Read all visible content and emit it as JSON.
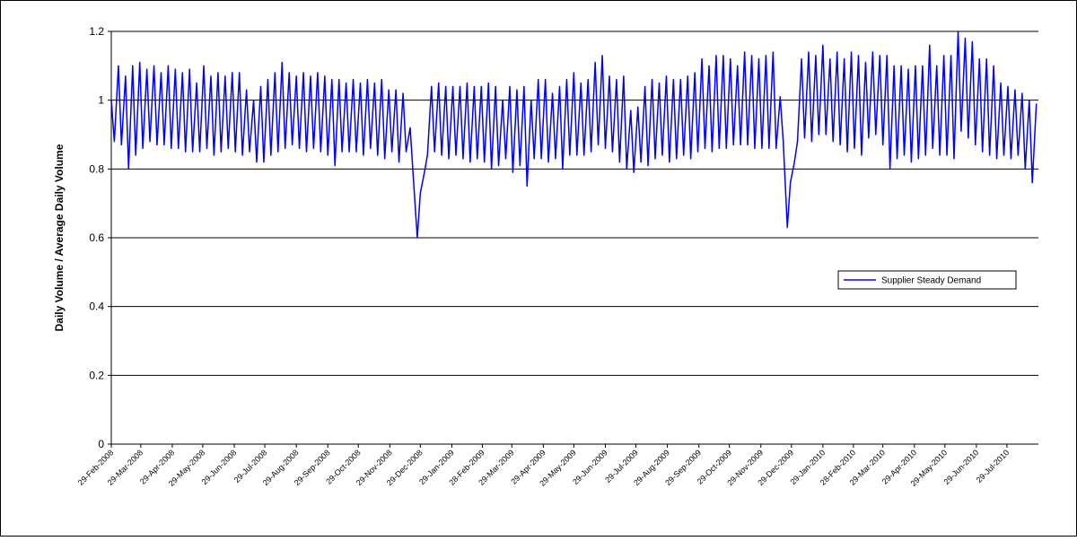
{
  "chart_data": {
    "type": "line",
    "y_label": "Daily Volume / Average Daily Volume",
    "ylim": [
      0,
      1.2
    ],
    "yticks": [
      0,
      0.2,
      0.4,
      0.6,
      0.8,
      1,
      1.2
    ],
    "grid": true,
    "legend": "right",
    "xlim": [
      "29-Feb-2008",
      "29-Aug-2010"
    ],
    "xticks": [
      "29-Feb-2008",
      "29-Mar-2008",
      "29-Apr-2008",
      "29-May-2008",
      "29-Jun-2008",
      "29-Jul-2008",
      "29-Aug-2008",
      "29-Sep-2008",
      "29-Oct-2008",
      "29-Nov-2008",
      "29-Dec-2008",
      "29-Jan-2009",
      "28-Feb-2009",
      "29-Mar-2009",
      "29-Apr-2009",
      "29-May-2009",
      "29-Jun-2009",
      "29-Jul-2009",
      "29-Aug-2009",
      "29-Sep-2009",
      "29-Oct-2009",
      "29-Nov-2009",
      "29-Dec-2009",
      "29-Jan-2010",
      "28-Feb-2010",
      "29-Mar-2010",
      "29-Apr-2010",
      "29-May-2010",
      "29-Jun-2010",
      "29-Jul-2010"
    ],
    "x": [
      "29-Feb-2008",
      "3-Mar-2008",
      "7-Mar-2008",
      "10-Mar-2008",
      "14-Mar-2008",
      "17-Mar-2008",
      "21-Mar-2008",
      "24-Mar-2008",
      "28-Mar-2008",
      "31-Mar-2008",
      "4-Apr-2008",
      "7-Apr-2008",
      "11-Apr-2008",
      "14-Apr-2008",
      "18-Apr-2008",
      "21-Apr-2008",
      "25-Apr-2008",
      "28-Apr-2008",
      "2-May-2008",
      "5-May-2008",
      "9-May-2008",
      "12-May-2008",
      "16-May-2008",
      "19-May-2008",
      "23-May-2008",
      "26-May-2008",
      "30-May-2008",
      "2-Jun-2008",
      "6-Jun-2008",
      "9-Jun-2008",
      "13-Jun-2008",
      "16-Jun-2008",
      "20-Jun-2008",
      "23-Jun-2008",
      "27-Jun-2008",
      "30-Jun-2008",
      "4-Jul-2008",
      "7-Jul-2008",
      "11-Jul-2008",
      "14-Jul-2008",
      "18-Jul-2008",
      "21-Jul-2008",
      "25-Jul-2008",
      "28-Jul-2008",
      "1-Aug-2008",
      "4-Aug-2008",
      "8-Aug-2008",
      "11-Aug-2008",
      "15-Aug-2008",
      "18-Aug-2008",
      "22-Aug-2008",
      "25-Aug-2008",
      "29-Aug-2008",
      "1-Sep-2008",
      "5-Sep-2008",
      "8-Sep-2008",
      "12-Sep-2008",
      "15-Sep-2008",
      "19-Sep-2008",
      "22-Sep-2008",
      "26-Sep-2008",
      "29-Sep-2008",
      "3-Oct-2008",
      "6-Oct-2008",
      "10-Oct-2008",
      "13-Oct-2008",
      "17-Oct-2008",
      "20-Oct-2008",
      "24-Oct-2008",
      "27-Oct-2008",
      "31-Oct-2008",
      "3-Nov-2008",
      "7-Nov-2008",
      "10-Nov-2008",
      "14-Nov-2008",
      "17-Nov-2008",
      "21-Nov-2008",
      "24-Nov-2008",
      "28-Nov-2008",
      "1-Dec-2008",
      "5-Dec-2008",
      "8-Dec-2008",
      "12-Dec-2008",
      "15-Dec-2008",
      "19-Dec-2008",
      "22-Dec-2008",
      "26-Dec-2008",
      "29-Dec-2008",
      "2-Jan-2009",
      "5-Jan-2009",
      "9-Jan-2009",
      "12-Jan-2009",
      "16-Jan-2009",
      "19-Jan-2009",
      "23-Jan-2009",
      "26-Jan-2009",
      "30-Jan-2009",
      "2-Feb-2009",
      "6-Feb-2009",
      "9-Feb-2009",
      "13-Feb-2009",
      "16-Feb-2009",
      "20-Feb-2009",
      "23-Feb-2009",
      "27-Feb-2009",
      "2-Mar-2009",
      "6-Mar-2009",
      "9-Mar-2009",
      "13-Mar-2009",
      "16-Mar-2009",
      "20-Mar-2009",
      "23-Mar-2009",
      "27-Mar-2009",
      "30-Mar-2009",
      "3-Apr-2009",
      "6-Apr-2009",
      "10-Apr-2009",
      "13-Apr-2009",
      "17-Apr-2009",
      "20-Apr-2009",
      "24-Apr-2009",
      "27-Apr-2009",
      "1-May-2009",
      "4-May-2009",
      "8-May-2009",
      "11-May-2009",
      "15-May-2009",
      "18-May-2009",
      "22-May-2009",
      "25-May-2009",
      "29-May-2009",
      "1-Jun-2009",
      "5-Jun-2009",
      "8-Jun-2009",
      "12-Jun-2009",
      "15-Jun-2009",
      "19-Jun-2009",
      "22-Jun-2009",
      "26-Jun-2009",
      "29-Jun-2009",
      "3-Jul-2009",
      "6-Jul-2009",
      "10-Jul-2009",
      "13-Jul-2009",
      "17-Jul-2009",
      "20-Jul-2009",
      "24-Jul-2009",
      "27-Jul-2009",
      "31-Jul-2009",
      "3-Aug-2009",
      "7-Aug-2009",
      "10-Aug-2009",
      "14-Aug-2009",
      "17-Aug-2009",
      "21-Aug-2009",
      "24-Aug-2009",
      "28-Aug-2009",
      "31-Aug-2009",
      "4-Sep-2009",
      "7-Sep-2009",
      "11-Sep-2009",
      "14-Sep-2009",
      "18-Sep-2009",
      "21-Sep-2009",
      "25-Sep-2009",
      "28-Sep-2009",
      "2-Oct-2009",
      "5-Oct-2009",
      "9-Oct-2009",
      "12-Oct-2009",
      "16-Oct-2009",
      "19-Oct-2009",
      "23-Oct-2009",
      "26-Oct-2009",
      "30-Oct-2009",
      "2-Nov-2009",
      "6-Nov-2009",
      "9-Nov-2009",
      "13-Nov-2009",
      "16-Nov-2009",
      "20-Nov-2009",
      "23-Nov-2009",
      "27-Nov-2009",
      "30-Nov-2009",
      "4-Dec-2009",
      "7-Dec-2009",
      "11-Dec-2009",
      "14-Dec-2009",
      "18-Dec-2009",
      "21-Dec-2009",
      "25-Dec-2009",
      "28-Dec-2009",
      "1-Jan-2010",
      "4-Jan-2010",
      "8-Jan-2010",
      "11-Jan-2010",
      "15-Jan-2010",
      "18-Jan-2010",
      "22-Jan-2010",
      "25-Jan-2010",
      "29-Jan-2010",
      "1-Feb-2010",
      "5-Feb-2010",
      "8-Feb-2010",
      "12-Feb-2010",
      "15-Feb-2010",
      "19-Feb-2010",
      "22-Feb-2010",
      "26-Feb-2010",
      "1-Mar-2010",
      "5-Mar-2010",
      "8-Mar-2010",
      "12-Mar-2010",
      "15-Mar-2010",
      "19-Mar-2010",
      "22-Mar-2010",
      "26-Mar-2010",
      "29-Mar-2010",
      "2-Apr-2010",
      "5-Apr-2010",
      "9-Apr-2010",
      "12-Apr-2010",
      "16-Apr-2010",
      "19-Apr-2010",
      "23-Apr-2010",
      "26-Apr-2010",
      "30-Apr-2010",
      "3-May-2010",
      "7-May-2010",
      "10-May-2010",
      "14-May-2010",
      "17-May-2010",
      "21-May-2010",
      "24-May-2010",
      "28-May-2010",
      "31-May-2010",
      "4-Jun-2010",
      "7-Jun-2010",
      "11-Jun-2010",
      "14-Jun-2010",
      "18-Jun-2010",
      "21-Jun-2010",
      "25-Jun-2010",
      "28-Jun-2010",
      "2-Jul-2010",
      "5-Jul-2010",
      "9-Jul-2010",
      "12-Jul-2010",
      "16-Jul-2010",
      "19-Jul-2010",
      "23-Jul-2010",
      "26-Jul-2010",
      "30-Jul-2010",
      "2-Aug-2010",
      "6-Aug-2010",
      "9-Aug-2010",
      "13-Aug-2010",
      "16-Aug-2010",
      "20-Aug-2010",
      "23-Aug-2010",
      "27-Aug-2010"
    ],
    "series": [
      {
        "name": "Supplier Steady Demand",
        "color": "#0000ff",
        "values": [
          1.0,
          0.88,
          1.1,
          0.87,
          1.07,
          0.8,
          1.1,
          0.84,
          1.11,
          0.86,
          1.09,
          0.88,
          1.1,
          0.87,
          1.08,
          0.87,
          1.1,
          0.86,
          1.09,
          0.86,
          1.08,
          0.85,
          1.09,
          0.85,
          1.05,
          0.85,
          1.1,
          0.86,
          1.07,
          0.84,
          1.08,
          0.85,
          1.07,
          0.86,
          1.08,
          0.85,
          1.08,
          0.84,
          1.03,
          0.85,
          1.0,
          0.82,
          1.04,
          0.82,
          1.06,
          0.84,
          1.08,
          0.85,
          1.11,
          0.86,
          1.08,
          0.87,
          1.07,
          0.86,
          1.08,
          0.85,
          1.07,
          0.86,
          1.08,
          0.85,
          1.07,
          0.84,
          1.06,
          0.81,
          1.06,
          0.85,
          1.05,
          0.85,
          1.06,
          0.85,
          1.05,
          0.84,
          1.06,
          0.86,
          1.05,
          0.84,
          1.06,
          0.83,
          1.03,
          0.85,
          1.03,
          0.82,
          1.02,
          0.85,
          0.92,
          0.78,
          0.6,
          0.73,
          0.79,
          0.84,
          1.04,
          0.85,
          1.05,
          0.84,
          1.04,
          0.83,
          1.04,
          0.84,
          1.04,
          0.83,
          1.05,
          0.82,
          1.04,
          0.83,
          1.04,
          0.82,
          1.05,
          0.8,
          1.04,
          0.81,
          1.0,
          0.83,
          1.04,
          0.79,
          1.03,
          0.81,
          1.04,
          0.75,
          1.0,
          0.83,
          1.06,
          0.83,
          1.06,
          0.82,
          1.02,
          0.83,
          1.04,
          0.8,
          1.06,
          0.84,
          1.08,
          0.84,
          1.05,
          0.84,
          1.06,
          0.85,
          1.11,
          0.87,
          1.13,
          0.86,
          1.07,
          0.85,
          1.06,
          0.82,
          1.07,
          0.8,
          0.97,
          0.79,
          0.98,
          0.82,
          1.04,
          0.81,
          1.06,
          0.83,
          1.05,
          0.84,
          1.07,
          0.82,
          1.06,
          0.83,
          1.06,
          0.84,
          1.07,
          0.83,
          1.08,
          0.85,
          1.12,
          0.86,
          1.1,
          0.85,
          1.13,
          0.86,
          1.13,
          0.86,
          1.12,
          0.87,
          1.1,
          0.87,
          1.14,
          0.87,
          1.13,
          0.86,
          1.12,
          0.86,
          1.13,
          0.86,
          1.14,
          0.86,
          1.01,
          0.88,
          0.63,
          0.76,
          0.82,
          0.88,
          1.12,
          0.89,
          1.14,
          0.88,
          1.13,
          0.9,
          1.16,
          0.9,
          1.12,
          0.88,
          1.14,
          0.87,
          1.12,
          0.85,
          1.14,
          0.86,
          1.13,
          0.84,
          1.11,
          0.89,
          1.14,
          0.9,
          1.13,
          0.87,
          1.13,
          0.8,
          1.1,
          0.83,
          1.1,
          0.84,
          1.09,
          0.82,
          1.1,
          0.83,
          1.1,
          0.84,
          1.16,
          0.86,
          1.1,
          0.84,
          1.13,
          0.84,
          1.13,
          0.83,
          1.2,
          0.91,
          1.18,
          0.89,
          1.17,
          0.87,
          1.12,
          0.85,
          1.12,
          0.84,
          1.1,
          0.83,
          1.05,
          0.84,
          1.04,
          0.83,
          1.03,
          0.84,
          1.02,
          0.8,
          1.0,
          0.76,
          0.99
        ]
      }
    ]
  }
}
